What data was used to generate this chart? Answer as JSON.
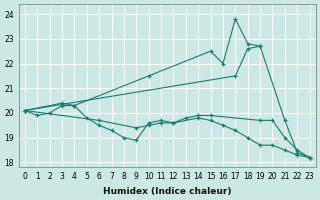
{
  "xlabel": "Humidex (Indice chaleur)",
  "bg_color": "#cce8e4",
  "line_color": "#1a7a6e",
  "grid_color": "#ffffff",
  "xlim": [
    -0.5,
    23.5
  ],
  "ylim": [
    17.8,
    24.4
  ],
  "yticks": [
    18,
    19,
    20,
    21,
    22,
    23,
    24
  ],
  "xticks": [
    0,
    1,
    2,
    3,
    4,
    5,
    6,
    7,
    8,
    9,
    10,
    11,
    12,
    13,
    14,
    15,
    16,
    17,
    18,
    19,
    20,
    21,
    22,
    23
  ],
  "series": [
    {
      "x": [
        0,
        3,
        4,
        10,
        15,
        16,
        17,
        18,
        19
      ],
      "y": [
        20.1,
        20.4,
        20.3,
        21.5,
        22.5,
        22.0,
        23.8,
        22.8,
        22.7
      ]
    },
    {
      "x": [
        0,
        17,
        18,
        19,
        21,
        22,
        23
      ],
      "y": [
        20.1,
        21.5,
        22.6,
        22.7,
        19.7,
        18.4,
        18.2
      ]
    },
    {
      "x": [
        0,
        1,
        2,
        3,
        4,
        5,
        6,
        7,
        8,
        9,
        10,
        11,
        12,
        13,
        14,
        15,
        19,
        20,
        21,
        22,
        23
      ],
      "y": [
        20.1,
        19.9,
        20.0,
        20.3,
        20.3,
        19.8,
        19.5,
        19.3,
        19.0,
        18.9,
        19.6,
        19.7,
        19.6,
        19.8,
        19.9,
        19.9,
        19.7,
        19.7,
        19.0,
        18.5,
        18.2
      ]
    },
    {
      "x": [
        0,
        6,
        9,
        10,
        11,
        12,
        14,
        15,
        16,
        17,
        18,
        19,
        20,
        21,
        22,
        23
      ],
      "y": [
        20.1,
        19.7,
        19.4,
        19.5,
        19.6,
        19.6,
        19.8,
        19.7,
        19.5,
        19.3,
        19.0,
        18.7,
        18.7,
        18.5,
        18.3,
        18.2
      ]
    }
  ]
}
